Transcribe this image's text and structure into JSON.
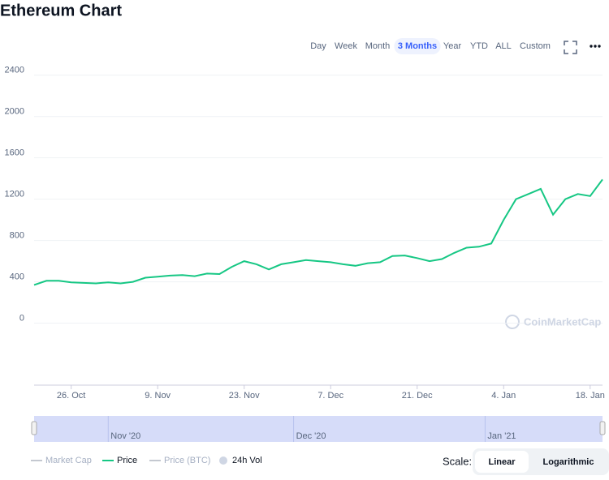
{
  "header": {
    "title": "Ethereum Chart"
  },
  "range_buttons": [
    {
      "label": "Day",
      "active": false
    },
    {
      "label": "Week",
      "active": false
    },
    {
      "label": "Month",
      "active": false
    },
    {
      "label": "3 Months",
      "active": true
    },
    {
      "label": "Year",
      "active": false
    },
    {
      "label": "YTD",
      "active": false
    },
    {
      "label": "ALL",
      "active": false
    },
    {
      "label": "Custom",
      "active": false
    }
  ],
  "chart_data": {
    "type": "line",
    "x": [
      "2020-10-20",
      "2020-10-22",
      "2020-10-24",
      "2020-10-26",
      "2020-10-28",
      "2020-10-30",
      "2020-11-01",
      "2020-11-03",
      "2020-11-05",
      "2020-11-07",
      "2020-11-09",
      "2020-11-11",
      "2020-11-13",
      "2020-11-15",
      "2020-11-17",
      "2020-11-19",
      "2020-11-21",
      "2020-11-23",
      "2020-11-25",
      "2020-11-27",
      "2020-11-29",
      "2020-12-01",
      "2020-12-03",
      "2020-12-05",
      "2020-12-07",
      "2020-12-09",
      "2020-12-11",
      "2020-12-13",
      "2020-12-15",
      "2020-12-17",
      "2020-12-19",
      "2020-12-21",
      "2020-12-23",
      "2020-12-25",
      "2020-12-27",
      "2020-12-29",
      "2020-12-31",
      "2021-01-02",
      "2021-01-04",
      "2021-01-06",
      "2021-01-08",
      "2021-01-10",
      "2021-01-12",
      "2021-01-14",
      "2021-01-16",
      "2021-01-18",
      "2021-01-20"
    ],
    "series": [
      {
        "name": "Price",
        "color": "#16c784",
        "values": [
          370,
          410,
          410,
          395,
          390,
          385,
          395,
          385,
          400,
          440,
          450,
          460,
          465,
          455,
          480,
          475,
          545,
          600,
          570,
          520,
          570,
          590,
          610,
          600,
          590,
          570,
          555,
          580,
          590,
          650,
          655,
          630,
          600,
          620,
          680,
          730,
          740,
          770,
          1000,
          1200,
          1250,
          1300,
          1050,
          1200,
          1250,
          1230,
          1390
        ]
      }
    ],
    "xlim": [
      "2020-10-20",
      "2021-01-20"
    ],
    "xticks": [
      {
        "value": "2020-10-26",
        "label": "26. Oct"
      },
      {
        "value": "2020-11-09",
        "label": "9. Nov"
      },
      {
        "value": "2020-11-23",
        "label": "23. Nov"
      },
      {
        "value": "2020-12-07",
        "label": "7. Dec"
      },
      {
        "value": "2020-12-21",
        "label": "21. Dec"
      },
      {
        "value": "2021-01-04",
        "label": "4. Jan"
      },
      {
        "value": "2021-01-18",
        "label": "18. Jan"
      }
    ],
    "ylim": [
      -600,
      2500
    ],
    "yticks": [
      0,
      400,
      800,
      1200,
      1600,
      2000,
      2400
    ],
    "grid": true,
    "navigator_labels": [
      {
        "value": "2020-11-01",
        "label": "Nov '20"
      },
      {
        "value": "2020-12-01",
        "label": "Dec '20"
      },
      {
        "value": "2021-01-01",
        "label": "Jan '21"
      }
    ],
    "legend_extra": [
      "Market Cap",
      "Price (BTC)",
      "24h Vol"
    ],
    "watermark": "CoinMarketCap"
  },
  "scale": {
    "label": "Scale:",
    "options": [
      {
        "label": "Linear",
        "active": true
      },
      {
        "label": "Logarithmic",
        "active": false
      }
    ]
  }
}
